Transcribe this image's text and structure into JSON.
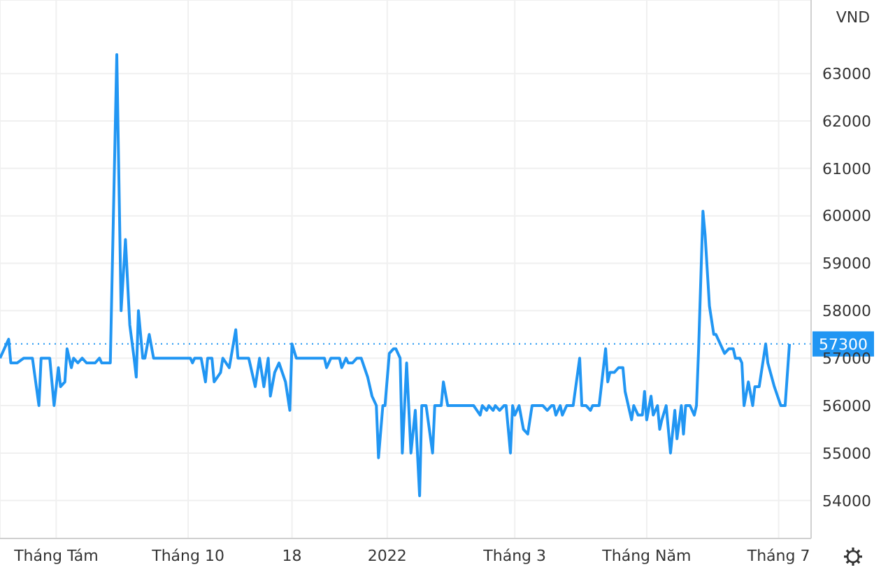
{
  "chart_data": {
    "type": "line",
    "ylabel": "VND",
    "x": [
      "2021-07-06",
      "2021-07-10",
      "2021-07-11",
      "2021-07-14",
      "2021-07-17",
      "2021-07-21",
      "2021-07-24",
      "2021-07-25",
      "2021-07-29",
      "2021-07-31",
      "2021-08-02",
      "2021-08-03",
      "2021-08-05",
      "2021-08-06",
      "2021-08-08",
      "2021-08-09",
      "2021-08-11",
      "2021-08-13",
      "2021-08-15",
      "2021-08-19",
      "2021-08-21",
      "2021-08-22",
      "2021-08-26",
      "2021-08-29",
      "2021-08-31",
      "2021-09-02",
      "2021-09-04",
      "2021-09-06",
      "2021-09-07",
      "2021-09-08",
      "2021-09-10",
      "2021-09-11",
      "2021-09-13",
      "2021-09-15",
      "2021-10-02",
      "2021-10-03",
      "2021-10-04",
      "2021-10-07",
      "2021-10-09",
      "2021-10-10",
      "2021-10-12",
      "2021-10-13",
      "2021-10-16",
      "2021-10-17",
      "2021-10-20",
      "2021-10-23",
      "2021-10-24",
      "2021-10-29",
      "2021-11-01",
      "2021-11-03",
      "2021-11-05",
      "2021-11-07",
      "2021-11-08",
      "2021-11-10",
      "2021-11-12",
      "2021-11-15",
      "2021-11-17",
      "2021-11-18",
      "2021-11-20",
      "2021-12-03",
      "2021-12-04",
      "2021-12-06",
      "2021-12-10",
      "2021-12-11",
      "2021-12-13",
      "2021-12-14",
      "2021-12-16",
      "2021-12-18",
      "2021-12-20",
      "2021-12-23",
      "2021-12-25",
      "2021-12-27",
      "2021-12-28",
      "2021-12-30",
      "2021-12-31",
      "2022-01-02",
      "2022-01-04",
      "2022-01-05",
      "2022-01-07",
      "2022-01-08",
      "2022-01-10",
      "2022-01-12",
      "2022-01-14",
      "2022-01-16",
      "2022-01-17",
      "2022-01-19",
      "2022-01-22",
      "2022-01-23",
      "2022-01-26",
      "2022-01-27",
      "2022-01-29",
      "2022-02-10",
      "2022-02-13",
      "2022-02-14",
      "2022-02-16",
      "2022-02-17",
      "2022-02-19",
      "2022-02-20",
      "2022-02-22",
      "2022-02-24",
      "2022-02-25",
      "2022-02-27",
      "2022-02-28",
      "2022-03-01",
      "2022-03-03",
      "2022-03-05",
      "2022-03-07",
      "2022-03-09",
      "2022-03-14",
      "2022-03-16",
      "2022-03-18",
      "2022-03-19",
      "2022-03-20",
      "2022-03-22",
      "2022-03-23",
      "2022-03-25",
      "2022-03-28",
      "2022-03-31",
      "2022-04-01",
      "2022-04-03",
      "2022-04-05",
      "2022-04-06",
      "2022-04-09",
      "2022-04-10",
      "2022-04-12",
      "2022-04-13",
      "2022-04-14",
      "2022-04-16",
      "2022-04-18",
      "2022-04-20",
      "2022-04-21",
      "2022-04-24",
      "2022-04-25",
      "2022-04-27",
      "2022-04-29",
      "2022-04-30",
      "2022-05-01",
      "2022-05-03",
      "2022-05-04",
      "2022-05-06",
      "2022-05-07",
      "2022-05-08",
      "2022-05-10",
      "2022-05-12",
      "2022-05-14",
      "2022-05-15",
      "2022-05-17",
      "2022-05-18",
      "2022-05-19",
      "2022-05-21",
      "2022-05-23",
      "2022-05-24",
      "2022-05-25",
      "2022-05-27",
      "2022-05-28",
      "2022-05-30",
      "2022-06-01",
      "2022-06-02",
      "2022-06-03",
      "2022-06-06",
      "2022-06-08",
      "2022-06-10",
      "2022-06-11",
      "2022-06-13",
      "2022-06-14",
      "2022-06-15",
      "2022-06-17",
      "2022-06-19",
      "2022-06-20",
      "2022-06-22",
      "2022-06-25",
      "2022-06-26",
      "2022-06-29",
      "2022-07-02",
      "2022-07-04",
      "2022-07-06"
    ],
    "series": [
      {
        "color": "#2196f3",
        "values": [
          57000,
          57400,
          56900,
          56900,
          57000,
          57000,
          56000,
          57000,
          57000,
          56000,
          56800,
          56400,
          56500,
          57200,
          56800,
          57000,
          56900,
          57000,
          56900,
          56900,
          57000,
          56900,
          56900,
          63400,
          58000,
          59500,
          57700,
          57000,
          56600,
          58000,
          57000,
          57000,
          57500,
          57000,
          57000,
          56900,
          57000,
          57000,
          56500,
          57000,
          57000,
          56500,
          56700,
          57000,
          56800,
          57600,
          57000,
          57000,
          56400,
          57000,
          56400,
          57000,
          56200,
          56700,
          56900,
          56500,
          55900,
          57300,
          57000,
          57000,
          56800,
          57000,
          57000,
          56800,
          57000,
          56900,
          56900,
          57000,
          57000,
          56600,
          56200,
          56000,
          54900,
          56000,
          56000,
          57100,
          57200,
          57200,
          57000,
          55000,
          56900,
          55000,
          55900,
          54100,
          56000,
          56000,
          55000,
          56000,
          56000,
          56500,
          56000,
          56000,
          55800,
          56000,
          55900,
          56000,
          55900,
          56000,
          55900,
          56000,
          56000,
          55000,
          56000,
          55800,
          56000,
          55500,
          55400,
          56000,
          56000,
          55900,
          56000,
          56000,
          55800,
          56000,
          55800,
          56000,
          56000,
          57000,
          56000,
          56000,
          55900,
          56000,
          56000,
          56400,
          57200,
          56500,
          56700,
          56700,
          56800,
          56800,
          56300,
          55700,
          56000,
          55800,
          55800,
          56300,
          55700,
          56200,
          55800,
          56000,
          55500,
          55700,
          56000,
          55000,
          55900,
          55300,
          56000,
          55400,
          56000,
          56000,
          55800,
          56000,
          57200,
          60100,
          59600,
          58100,
          57500,
          57500,
          57400,
          57100,
          57200,
          57200,
          57000,
          57000,
          56900,
          56000,
          56500,
          56000,
          56400,
          56400,
          57300,
          56900,
          56400,
          56000,
          56000,
          57300
        ]
      }
    ],
    "xlim": [
      "2021-07-06",
      "2022-07-16"
    ],
    "xticks": [
      {
        "value": "2021-08-01",
        "label": "Tháng Tám"
      },
      {
        "value": "2021-10-01",
        "label": "Tháng 10"
      },
      {
        "value": "2021-11-18",
        "label": "18"
      },
      {
        "value": "2022-01-01",
        "label": "2022"
      },
      {
        "value": "2022-03-01",
        "label": "Tháng 3"
      },
      {
        "value": "2022-05-01",
        "label": "Tháng Năm"
      },
      {
        "value": "2022-07-01",
        "label": "Tháng 7"
      }
    ],
    "ylim": [
      53200,
      64550
    ],
    "yticks": [
      54000,
      55000,
      56000,
      57000,
      58000,
      59000,
      60000,
      61000,
      62000,
      63000
    ],
    "grid": true,
    "marker": "none",
    "line_style": "solid",
    "ref_lines": [
      {
        "axis": "y",
        "value": 57300,
        "label": "57300",
        "color": "#2196f3",
        "line_style": "dotted"
      }
    ]
  }
}
